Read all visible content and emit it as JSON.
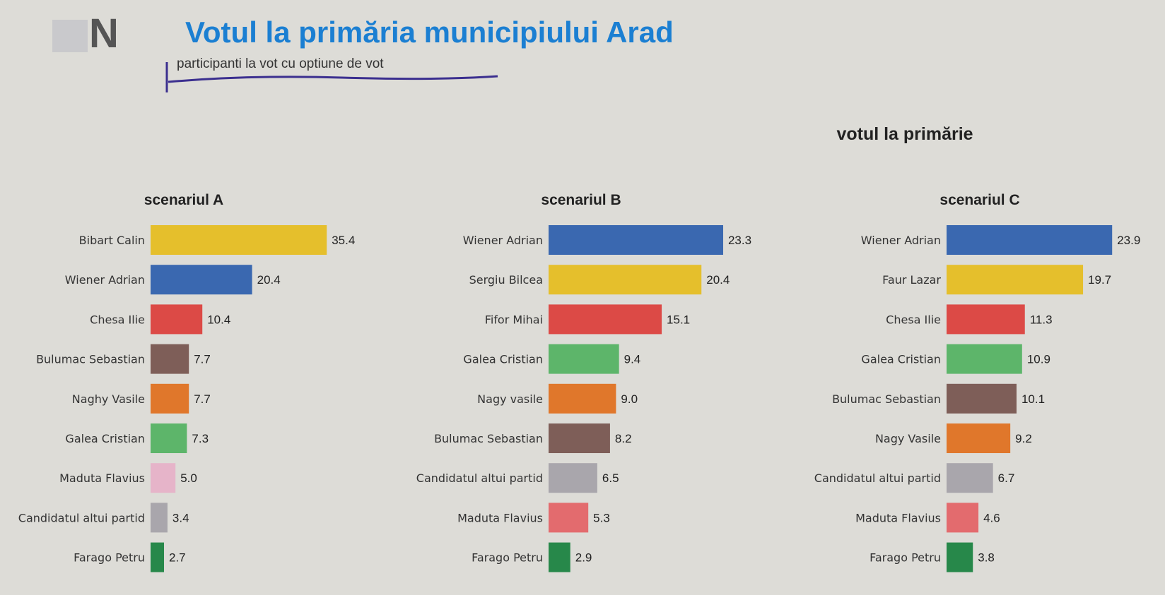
{
  "header": {
    "logo_text": "N",
    "title": "Votul la primăria municipiului Arad",
    "subtitle": "participanti la vot cu optiune de vot",
    "section_title": "votul la primărie"
  },
  "chart_data": [
    {
      "type": "bar",
      "orientation": "horizontal",
      "title": "scenariul A",
      "categories": [
        "Bibart Calin",
        "Wiener Adrian",
        "Chesa Ilie",
        "Bulumac Sebastian",
        "Naghy Vasile",
        "Galea Cristian",
        "Maduta Flavius",
        "Candidatul altui partid",
        "Farago Petru"
      ],
      "values": [
        35.4,
        20.4,
        10.4,
        7.7,
        7.7,
        7.3,
        5.0,
        3.4,
        2.7
      ],
      "labels": [
        "35.4",
        "20.4",
        "10.4",
        "7.7",
        "7.7",
        "7.3",
        "5.0",
        "3.4",
        "2.7"
      ],
      "colors": [
        "#e5bf2c",
        "#3a68b0",
        "#dc4a46",
        "#7e5e58",
        "#e0772b",
        "#5db56a",
        "#e6b4c9",
        "#a9a6ac",
        "#27884a"
      ],
      "grid": false
    },
    {
      "type": "bar",
      "orientation": "horizontal",
      "title": "scenariul B",
      "categories": [
        "Wiener Adrian",
        "Sergiu Bilcea",
        "Fifor Mihai",
        "Galea Cristian",
        "Nagy vasile",
        "Bulumac Sebastian",
        "Candidatul altui partid",
        "Maduta Flavius",
        "Farago Petru"
      ],
      "values": [
        23.3,
        20.4,
        15.1,
        9.4,
        9.0,
        8.2,
        6.5,
        5.3,
        2.9
      ],
      "labels": [
        "23.3",
        "20.4",
        "15.1",
        "9.4",
        "9.0",
        "8.2",
        "6.5",
        "5.3",
        "2.9"
      ],
      "colors": [
        "#3a68b0",
        "#e5bf2c",
        "#dc4a46",
        "#5db56a",
        "#e0772b",
        "#7e5e58",
        "#a9a6ac",
        "#e36b6e",
        "#27884a"
      ],
      "grid": false
    },
    {
      "type": "bar",
      "orientation": "horizontal",
      "title": "scenariul C",
      "categories": [
        "Wiener Adrian",
        "Faur Lazar",
        "Chesa Ilie",
        "Galea Cristian",
        "Bulumac Sebastian",
        "Nagy Vasile",
        "Candidatul altui partid",
        "Maduta Flavius",
        "Farago Petru"
      ],
      "values": [
        23.9,
        19.7,
        11.3,
        10.9,
        10.1,
        9.2,
        6.7,
        4.6,
        3.8
      ],
      "labels": [
        "23.9",
        "19.7",
        "11.3",
        "10.9",
        "10.1",
        "9.2",
        "6.7",
        "4.6",
        "3.8"
      ],
      "colors": [
        "#3a68b0",
        "#e5bf2c",
        "#dc4a46",
        "#5db56a",
        "#7e5e58",
        "#e0772b",
        "#a9a6ac",
        "#e36b6e",
        "#27884a"
      ],
      "grid": false
    }
  ]
}
